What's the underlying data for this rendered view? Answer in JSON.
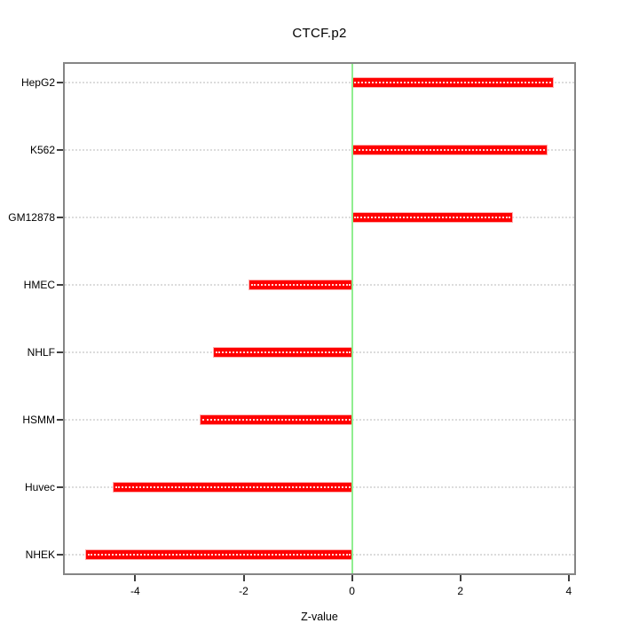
{
  "chart_data": {
    "type": "bar",
    "orientation": "horizontal",
    "title": "CTCF.p2",
    "xlabel": "Z-value",
    "ylabel": "",
    "categories": [
      "HepG2",
      "K562",
      "GM12878",
      "HMEC",
      "NHLF",
      "HSMM",
      "Huvec",
      "NHEK"
    ],
    "values": [
      3.7,
      3.6,
      2.95,
      -1.9,
      -2.55,
      -2.8,
      -4.4,
      -4.9
    ],
    "xlim": [
      -5.3,
      4.1
    ],
    "x_ticks": [
      -4,
      -2,
      0,
      2,
      4
    ],
    "zero_reference_line": 0,
    "grid": "horizontal dotted line per category",
    "legend": "none",
    "colors": {
      "bar_fill": "#FF0000",
      "zero_line": "#90EE90",
      "gridline": "#DCDCDC",
      "plot_border": "#858585",
      "tick": "#3F3F3F",
      "text": "#000000",
      "background": "#FFFFFF"
    }
  }
}
